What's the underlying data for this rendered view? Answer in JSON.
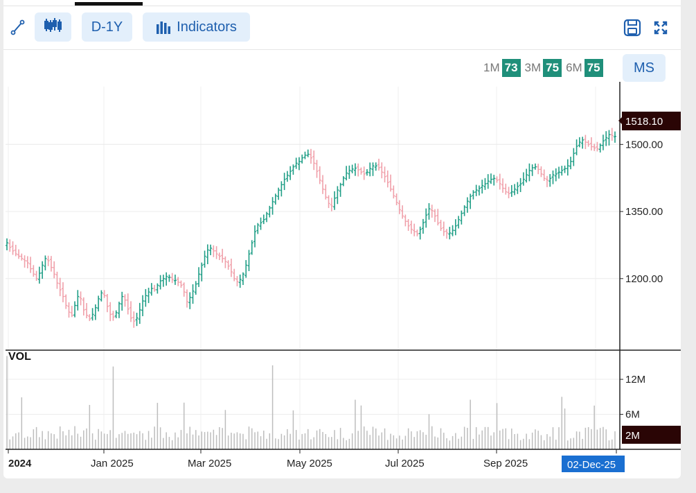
{
  "toolbar": {
    "draw_icon": "line-tool-icon",
    "candle_icon": "candlestick-icon",
    "period_label": "D-1Y",
    "indicators_label": "Indicators",
    "save_icon": "save-icon",
    "expand_icon": "expand-icon"
  },
  "rsi": {
    "m1_label": "1M",
    "m1_value": "73",
    "m3_label": "3M",
    "m3_value": "75",
    "m6_label": "6M",
    "m6_value": "75",
    "ms_label": "MS"
  },
  "colors": {
    "up": "#1f9e86",
    "down": "#f0a0aa",
    "accent": "#1e5fae",
    "price_tag": "#2a0505",
    "date_tag": "#1a6fd1"
  },
  "chart_data": {
    "type": "ohlc",
    "price_axis": {
      "ticks": [
        1200,
        1350,
        1500
      ],
      "tick_labels": [
        "1200.00",
        "1350.00",
        "1500.00"
      ],
      "range": [
        1040,
        1640
      ]
    },
    "volume_axis": {
      "ticks": [
        6,
        12
      ],
      "tick_labels": [
        "6M",
        "12M"
      ],
      "range": [
        0,
        17
      ],
      "unit": "M"
    },
    "volume_title": "VOL",
    "x_labels": [
      "2024",
      "Jan 2025",
      "Mar 2025",
      "May 2025",
      "Jul 2025",
      "Sep 2025"
    ],
    "last_price": "1518.10",
    "last_volume": "2M",
    "last_date": "02-Dec-25",
    "close": [
      1280,
      1270,
      1262,
      1255,
      1250,
      1245,
      1240,
      1235,
      1222,
      1210,
      1200,
      1212,
      1230,
      1245,
      1240,
      1225,
      1210,
      1190,
      1175,
      1160,
      1140,
      1125,
      1118,
      1140,
      1160,
      1155,
      1130,
      1118,
      1110,
      1120,
      1135,
      1155,
      1168,
      1162,
      1138,
      1120,
      1114,
      1124,
      1144,
      1160,
      1152,
      1132,
      1112,
      1105,
      1112,
      1130,
      1150,
      1162,
      1170,
      1178,
      1175,
      1185,
      1195,
      1200,
      1205,
      1203,
      1198,
      1196,
      1192,
      1185,
      1170,
      1148,
      1158,
      1172,
      1188,
      1210,
      1230,
      1250,
      1264,
      1268,
      1262,
      1255,
      1250,
      1245,
      1238,
      1228,
      1215,
      1200,
      1193,
      1198,
      1210,
      1230,
      1255,
      1280,
      1305,
      1320,
      1325,
      1332,
      1345,
      1358,
      1372,
      1385,
      1398,
      1410,
      1422,
      1431,
      1440,
      1450,
      1458,
      1462,
      1470,
      1476,
      1478,
      1470,
      1458,
      1440,
      1420,
      1400,
      1382,
      1368,
      1362,
      1380,
      1398,
      1410,
      1425,
      1436,
      1442,
      1445,
      1447,
      1443,
      1438,
      1434,
      1438,
      1446,
      1452,
      1452,
      1448,
      1438,
      1428,
      1415,
      1400,
      1385,
      1370,
      1354,
      1340,
      1328,
      1318,
      1310,
      1305,
      1300,
      1310,
      1325,
      1342,
      1356,
      1352,
      1340,
      1324,
      1312,
      1305,
      1302,
      1302,
      1308,
      1318,
      1332,
      1346,
      1360,
      1373,
      1384,
      1393,
      1398,
      1402,
      1408,
      1412,
      1418,
      1422,
      1424,
      1420,
      1412,
      1402,
      1394,
      1390,
      1394,
      1400,
      1406,
      1412,
      1422,
      1432,
      1442,
      1448,
      1450,
      1444,
      1434,
      1424,
      1420,
      1424,
      1432,
      1434,
      1438,
      1442,
      1446,
      1452,
      1462,
      1480,
      1496,
      1505,
      1510,
      1505,
      1500,
      1495,
      1492,
      1490,
      1498,
      1508,
      1515,
      1522,
      1520,
      1518
    ]
  }
}
